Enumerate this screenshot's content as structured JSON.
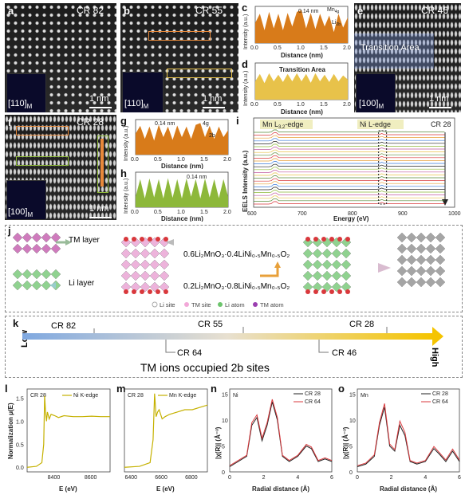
{
  "panels": {
    "a": {
      "letter": "a",
      "cr": "CR 82",
      "scale": "1 nm",
      "zone": "[110]",
      "zone_sub": "M"
    },
    "b": {
      "letter": "b",
      "cr": "CR 55",
      "scale": "1 nm",
      "zone": "[110]",
      "zone_sub": "M"
    },
    "c": {
      "letter": "c",
      "ylabel": "Intensity (a.u.)",
      "xlabel": "Distance (nm)",
      "annot1": "0.14 nm",
      "annot2": "Mn",
      "annot2_sub": "4g",
      "annot3": "Li",
      "annot3_sub": "2b"
    },
    "d": {
      "letter": "d",
      "ylabel": "Intensity (a.u.)",
      "xlabel": "Distance (nm)",
      "annot": "Transition Area"
    },
    "e": {
      "letter": "e",
      "cr": "CR 46",
      "scale": "1 nm",
      "zone": "[100]",
      "zone_sub": "M",
      "annot": "Transition Area"
    },
    "f": {
      "letter": "f",
      "cr": "CR 28",
      "scale": "1 nm",
      "zone": "[100]",
      "zone_sub": "M"
    },
    "g": {
      "letter": "g",
      "ylabel": "Intensity (a.u.)",
      "xlabel": "Distance (nm)",
      "annot1": "0.14 nm",
      "annot2": "4g",
      "annot3": "2b"
    },
    "h": {
      "letter": "h",
      "ylabel": "Intensity (a.u.)",
      "xlabel": "Distance (nm)",
      "annot1": "0.14 nm"
    },
    "i": {
      "letter": "i",
      "ylabel": "EELS Intensity (a.u.)",
      "xlabel": "Energy (eV)",
      "mn_edge": "Mn L",
      "mn_edge_sub": "3,2",
      "mn_edge_suffix": "-edge",
      "ni_edge": "Ni L-edge",
      "cr": "CR 28"
    },
    "j": {
      "letter": "j",
      "tm_layer": "TM layer",
      "li_layer": "Li layer",
      "formula1": "0.6Li₂MnO₃·0.4LiNi₀.₅Mn₀.₅O₂",
      "formula2": "0.2Li₂MnO₃·0.8LiNi₀.₅Mn₀.₅O₂",
      "legend": [
        "Li site",
        "TM site",
        "Li atom",
        "TM atom"
      ]
    },
    "k": {
      "letter": "k",
      "low": "Low",
      "high": "High",
      "labels_top": [
        "CR 82",
        "CR 55",
        "CR 28"
      ],
      "labels_bottom": [
        "CR 64",
        "CR 46"
      ],
      "title": "TM ions occupied 2b sites"
    },
    "l": {
      "letter": "l",
      "cr": "CR 28",
      "legend": "Ni K-edge",
      "ylabel": "Normalization μ(E)",
      "xlabel": "E (eV)"
    },
    "m": {
      "letter": "m",
      "cr": "CR 28",
      "legend": "Mn K-edge",
      "xlabel": "E (eV)"
    },
    "n": {
      "letter": "n",
      "element": "Ni",
      "legend": [
        "CR 28",
        "CR 64"
      ],
      "ylabel": "|χ(R)| (Å⁻³)",
      "xlabel": "Radial distance (Å)"
    },
    "o": {
      "letter": "o",
      "element": "Mn",
      "legend": [
        "CR 28",
        "CR 64"
      ],
      "ylabel": "|χ(R)| (Å⁻³)",
      "xlabel": "Radial distance (Å)"
    }
  },
  "chart_data": [
    {
      "id": "c",
      "type": "area",
      "x_ticks": [
        0.0,
        0.5,
        1.0,
        1.5,
        2.0
      ],
      "xlim": [
        0,
        2
      ],
      "x": [
        0,
        0.1,
        0.2,
        0.3,
        0.4,
        0.5,
        0.6,
        0.7,
        0.8,
        0.9,
        1.0,
        1.1,
        1.2,
        1.3,
        1.4,
        1.5,
        1.6,
        1.7,
        1.8,
        1.9,
        2.0
      ],
      "y": [
        0.55,
        0.8,
        0.35,
        0.85,
        0.4,
        0.8,
        0.35,
        0.82,
        0.45,
        0.85,
        0.9,
        0.4,
        0.82,
        0.38,
        0.8,
        0.45,
        0.75,
        0.3,
        0.8,
        0.42,
        0.7
      ]
    },
    {
      "id": "d",
      "type": "area",
      "x_ticks": [
        0.0,
        0.5,
        1.0,
        1.5,
        2.0
      ],
      "xlim": [
        0,
        2
      ],
      "x": [
        0,
        0.1,
        0.2,
        0.3,
        0.4,
        0.5,
        0.6,
        0.7,
        0.8,
        0.9,
        1.0,
        1.1,
        1.2,
        1.3,
        1.4,
        1.5,
        1.6,
        1.7,
        1.8,
        1.9,
        2.0
      ],
      "y": [
        0.5,
        0.7,
        0.45,
        0.72,
        0.5,
        0.68,
        0.48,
        0.7,
        0.5,
        0.72,
        0.5,
        0.7,
        0.46,
        0.72,
        0.5,
        0.68,
        0.48,
        0.7,
        0.5,
        0.66,
        0.55
      ]
    },
    {
      "id": "g",
      "type": "area",
      "x_ticks": [
        0.0,
        0.5,
        1.0,
        1.5,
        2.0
      ],
      "xlim": [
        0,
        2
      ],
      "x": [
        0,
        0.1,
        0.2,
        0.3,
        0.4,
        0.5,
        0.6,
        0.7,
        0.8,
        0.9,
        1.0,
        1.1,
        1.2,
        1.3,
        1.4,
        1.5,
        1.6,
        1.7,
        1.8,
        1.9,
        2.0
      ],
      "y": [
        0.6,
        0.82,
        0.45,
        0.8,
        0.4,
        0.85,
        0.5,
        0.8,
        0.42,
        0.83,
        0.5,
        0.8,
        0.45,
        0.85,
        0.9,
        0.5,
        0.82,
        0.45,
        0.8,
        0.5,
        0.7
      ]
    },
    {
      "id": "h",
      "type": "area",
      "x_ticks": [
        0.0,
        0.5,
        1.0,
        1.5,
        2.0
      ],
      "xlim": [
        0,
        2
      ],
      "x": [
        0,
        0.1,
        0.2,
        0.3,
        0.4,
        0.5,
        0.6,
        0.7,
        0.8,
        0.9,
        1.0,
        1.1,
        1.2,
        1.3,
        1.4,
        1.5,
        1.6,
        1.7,
        1.8,
        1.9,
        2.0
      ],
      "y": [
        0.3,
        0.8,
        0.25,
        0.82,
        0.28,
        0.8,
        0.25,
        0.83,
        0.27,
        0.8,
        0.25,
        0.82,
        0.3,
        0.8,
        0.25,
        0.82,
        0.28,
        0.8,
        0.26,
        0.8,
        0.3
      ]
    },
    {
      "id": "i",
      "type": "line",
      "x_ticks": [
        600,
        700,
        800,
        900,
        1000
      ],
      "xlim": [
        600,
        1000
      ],
      "n_spectra": 26,
      "mn_edge_x": 642,
      "ni_edge_x": 855
    },
    {
      "id": "l",
      "type": "line",
      "x_ticks": [
        8400,
        8600
      ],
      "xlim": [
        8250,
        8700
      ],
      "y_ticks": [
        0.0,
        0.5,
        1.0,
        1.5
      ],
      "ylim": [
        -0.1,
        1.7
      ],
      "x": [
        8250,
        8300,
        8330,
        8340,
        8345,
        8350,
        8355,
        8360,
        8370,
        8380,
        8400,
        8420,
        8450,
        8500,
        8550,
        8600,
        8650,
        8700
      ],
      "y": [
        0.0,
        0.02,
        0.1,
        0.5,
        1.55,
        1.2,
        1.0,
        1.2,
        1.05,
        1.15,
        1.12,
        1.08,
        1.12,
        1.1,
        1.1,
        1.11,
        1.1,
        1.1
      ]
    },
    {
      "id": "m",
      "type": "line",
      "x_ticks": [
        6400,
        6600,
        6800
      ],
      "xlim": [
        6350,
        6900
      ],
      "ylim": [
        -0.1,
        1.7
      ],
      "x": [
        6350,
        6450,
        6520,
        6540,
        6550,
        6555,
        6560,
        6570,
        6580,
        6600,
        6620,
        6650,
        6700,
        6750,
        6800,
        6850,
        6900
      ],
      "y": [
        0.0,
        0.02,
        0.1,
        0.6,
        1.6,
        1.35,
        1.1,
        1.2,
        1.25,
        1.05,
        1.1,
        1.15,
        1.2,
        1.25,
        1.25,
        1.3,
        1.35
      ]
    },
    {
      "id": "n",
      "type": "line",
      "x_ticks": [
        0,
        2,
        4,
        6
      ],
      "xlim": [
        0,
        6
      ],
      "y_ticks": [
        0,
        5,
        10,
        15
      ],
      "ylim": [
        0,
        16
      ],
      "series": [
        {
          "name": "CR 28",
          "x": [
            0,
            0.5,
            1.0,
            1.3,
            1.6,
            1.9,
            2.2,
            2.5,
            2.8,
            3.1,
            3.5,
            4.0,
            4.5,
            4.8,
            5.2,
            5.6,
            6.0
          ],
          "y": [
            1,
            2,
            3,
            9,
            10.5,
            6,
            9,
            13.5,
            10,
            3,
            2,
            3,
            5,
            4.5,
            2,
            2.5,
            2
          ]
        },
        {
          "name": "CR 64",
          "x": [
            0,
            0.5,
            1.0,
            1.3,
            1.6,
            1.9,
            2.2,
            2.5,
            2.8,
            3.1,
            3.5,
            4.0,
            4.5,
            4.8,
            5.2,
            5.6,
            6.0
          ],
          "y": [
            1.2,
            2.2,
            3.2,
            9.5,
            11,
            6.5,
            9.5,
            14,
            10.5,
            3.2,
            2.2,
            3.2,
            5.3,
            4.8,
            2.2,
            2.7,
            2.2
          ]
        }
      ]
    },
    {
      "id": "o",
      "type": "line",
      "x_ticks": [
        0,
        2,
        4,
        6
      ],
      "xlim": [
        0,
        6
      ],
      "y_ticks": [
        0,
        5,
        10,
        15
      ],
      "ylim": [
        0,
        16
      ],
      "series": [
        {
          "name": "CR 28",
          "x": [
            0,
            0.5,
            1.0,
            1.3,
            1.6,
            1.9,
            2.2,
            2.5,
            2.8,
            3.1,
            3.5,
            4.0,
            4.5,
            4.8,
            5.2,
            5.6,
            6.0
          ],
          "y": [
            1,
            1.5,
            3,
            9,
            12.5,
            5,
            4,
            9,
            7,
            2,
            1.5,
            2,
            4.5,
            3.5,
            2,
            4,
            2
          ]
        },
        {
          "name": "CR 64",
          "x": [
            0,
            0.5,
            1.0,
            1.3,
            1.6,
            1.9,
            2.2,
            2.5,
            2.8,
            3.1,
            3.5,
            4.0,
            4.5,
            4.8,
            5.2,
            5.6,
            6.0
          ],
          "y": [
            1.2,
            1.7,
            3.3,
            9.5,
            13.2,
            5.4,
            4.3,
            9.8,
            7.6,
            2.2,
            1.7,
            2.2,
            4.9,
            3.8,
            2.3,
            4.4,
            2.3
          ]
        }
      ]
    }
  ],
  "colors": {
    "orange": "#d87b1a",
    "yellow": "#e8c24a",
    "green": "#8db83a",
    "black": "#222222",
    "red": "#d9383c",
    "kgold": "#c5b100"
  }
}
